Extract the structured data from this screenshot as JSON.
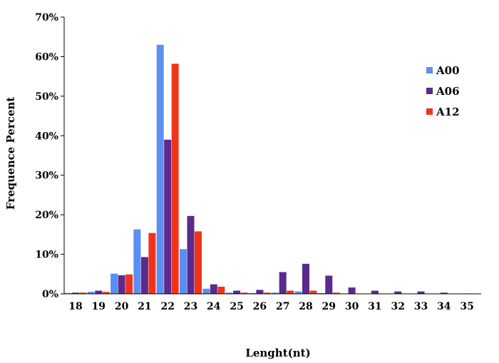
{
  "chart_data": {
    "type": "bar",
    "title": "",
    "xlabel": "Lenght(nt)",
    "ylabel": "Frequence Percent",
    "ylim": [
      0,
      70
    ],
    "y_ticks": [
      "0%",
      "10%",
      "20%",
      "30%",
      "40%",
      "50%",
      "60%",
      "70%"
    ],
    "y_tick_values": [
      0,
      10,
      20,
      30,
      40,
      50,
      60,
      70
    ],
    "categories": [
      "18",
      "19",
      "20",
      "21",
      "22",
      "23",
      "24",
      "25",
      "26",
      "27",
      "28",
      "29",
      "30",
      "31",
      "32",
      "33",
      "34",
      "35"
    ],
    "legend_position": "right",
    "grid": false,
    "series": [
      {
        "name": "A00",
        "color": "#5b8ff2",
        "values": [
          0.2,
          0.5,
          5.1,
          16.3,
          63.0,
          11.3,
          1.3,
          0.3,
          0.2,
          0.3,
          0.6,
          0.2,
          0,
          0,
          0,
          0,
          0,
          0
        ]
      },
      {
        "name": "A06",
        "color": "#5b2a8c",
        "values": [
          0.3,
          0.8,
          4.7,
          9.3,
          39.0,
          19.7,
          2.4,
          0.8,
          1.0,
          5.5,
          7.6,
          4.6,
          1.6,
          0.8,
          0.6,
          0.6,
          0.3,
          0.1
        ]
      },
      {
        "name": "A12",
        "color": "#f0341c",
        "values": [
          0.3,
          0.5,
          4.9,
          15.4,
          58.2,
          15.8,
          1.8,
          0.3,
          0.3,
          0.8,
          0.8,
          0.3,
          0,
          0,
          0,
          0,
          0,
          0
        ]
      }
    ]
  }
}
